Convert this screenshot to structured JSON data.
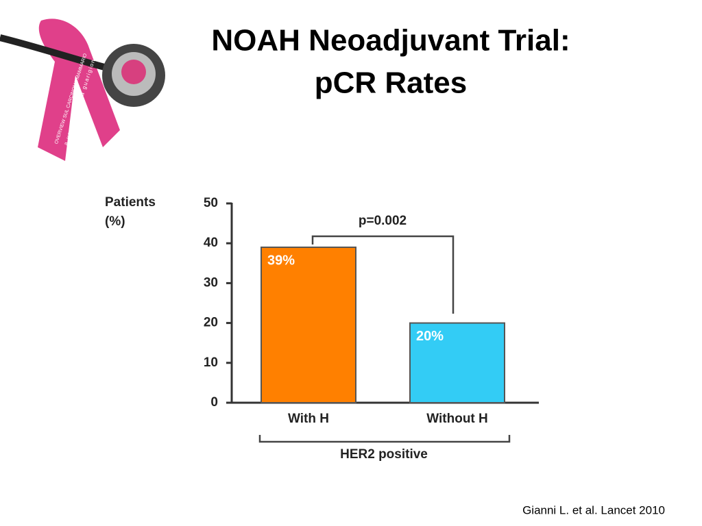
{
  "slide": {
    "title": [
      "NOAH Neoadjuvant Trial:",
      "pCR Rates"
    ],
    "citation": "Gianni L. et al. Lancet 2010",
    "logo_text": [
      "OVERVIEW SUL CARCINOMA MAMMARIO",
      "a un passo dalla guarigione?"
    ]
  },
  "chart_data": {
    "type": "bar",
    "ylabel": [
      "Patients",
      "(%)"
    ],
    "categories": [
      "With H",
      "Without H"
    ],
    "values": [
      39,
      20
    ],
    "value_labels": [
      "39%",
      "20%"
    ],
    "colors": [
      "#ff8000",
      "#33ccf5"
    ],
    "ylim": [
      0,
      50
    ],
    "yticks": [
      0,
      10,
      20,
      30,
      40,
      50
    ],
    "annotation": "p=0.002",
    "group_label": "HER2 positive"
  }
}
